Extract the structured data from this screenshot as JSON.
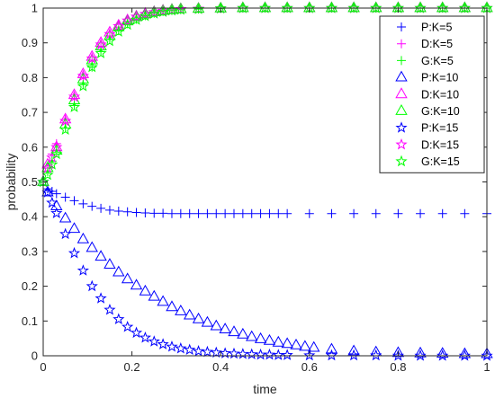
{
  "chart_data": {
    "type": "scatter",
    "title": "",
    "xlabel": "time",
    "ylabel": "probability",
    "xlim": [
      0,
      1
    ],
    "ylim": [
      0,
      1
    ],
    "xticks": [
      0,
      0.2,
      0.4,
      0.6,
      0.8,
      1
    ],
    "xtick_labels": [
      "0",
      "0.2",
      "0.4",
      "0.6",
      "0.8",
      "1"
    ],
    "yticks": [
      0,
      0.1,
      0.2,
      0.3,
      0.4,
      0.5,
      0.6,
      0.7,
      0.8,
      0.9,
      1
    ],
    "ytick_labels": [
      "0",
      "0.1",
      "0.2",
      "0.3",
      "0.4",
      "0.5",
      "0.6",
      "0.7",
      "0.8",
      "0.9",
      "1"
    ],
    "grid": false,
    "legend_position": "top-right",
    "series": [
      {
        "name": "P:K=5",
        "marker": "plus",
        "color": "#0000ff",
        "x": [
          0,
          0.01,
          0.02,
          0.03,
          0.05,
          0.07,
          0.09,
          0.11,
          0.13,
          0.15,
          0.17,
          0.19,
          0.21,
          0.23,
          0.25,
          0.27,
          0.29,
          0.31,
          0.33,
          0.35,
          0.37,
          0.39,
          0.41,
          0.43,
          0.45,
          0.47,
          0.49,
          0.51,
          0.53,
          0.55,
          0.6,
          0.65,
          0.7,
          0.75,
          0.8,
          0.85,
          0.9,
          0.95,
          1
        ],
        "y": [
          0.5,
          0.48,
          0.473,
          0.466,
          0.456,
          0.446,
          0.437,
          0.43,
          0.424,
          0.419,
          0.416,
          0.414,
          0.412,
          0.411,
          0.41,
          0.41,
          0.409,
          0.409,
          0.409,
          0.409,
          0.409,
          0.409,
          0.409,
          0.409,
          0.409,
          0.409,
          0.409,
          0.409,
          0.409,
          0.409,
          0.409,
          0.409,
          0.409,
          0.409,
          0.409,
          0.409,
          0.409,
          0.409,
          0.409
        ]
      },
      {
        "name": "D:K=5",
        "marker": "plus",
        "color": "#ff00ff",
        "x": [
          0,
          0.01,
          0.02,
          0.03,
          0.05,
          0.07,
          0.09,
          0.11,
          0.13,
          0.15,
          0.17,
          0.19,
          0.21,
          0.23,
          0.25,
          0.27,
          0.29,
          0.31,
          0.35,
          0.4,
          0.45,
          0.5,
          0.55,
          0.6,
          0.65,
          0.7,
          0.75,
          0.8,
          0.85,
          0.9,
          0.95,
          1
        ],
        "y": [
          0.5,
          0.54,
          0.58,
          0.61,
          0.68,
          0.74,
          0.8,
          0.85,
          0.89,
          0.92,
          0.945,
          0.962,
          0.974,
          0.982,
          0.988,
          0.992,
          0.995,
          0.997,
          0.998,
          0.999,
          1,
          1,
          1,
          1,
          1,
          1,
          1,
          1,
          1,
          1,
          1,
          1
        ]
      },
      {
        "name": "G:K=5",
        "marker": "plus",
        "color": "#00ff00",
        "x": [
          0,
          0.01,
          0.02,
          0.03,
          0.05,
          0.07,
          0.09,
          0.11,
          0.13,
          0.15,
          0.17,
          0.19,
          0.21,
          0.23,
          0.25,
          0.27,
          0.29,
          0.31,
          0.35,
          0.4,
          0.45,
          0.5,
          0.55,
          0.6,
          0.65,
          0.7,
          0.75,
          0.8,
          0.85,
          0.9,
          0.95,
          1
        ],
        "y": [
          0.5,
          0.53,
          0.56,
          0.59,
          0.655,
          0.72,
          0.78,
          0.83,
          0.875,
          0.91,
          0.935,
          0.955,
          0.968,
          0.978,
          0.985,
          0.99,
          0.993,
          0.995,
          0.997,
          0.999,
          1,
          1,
          1,
          1,
          1,
          1,
          1,
          1,
          1,
          1,
          1,
          1
        ]
      },
      {
        "name": "P:K=10",
        "marker": "triangle",
        "color": "#0000ff",
        "x": [
          0,
          0.01,
          0.03,
          0.05,
          0.07,
          0.09,
          0.11,
          0.13,
          0.15,
          0.17,
          0.19,
          0.21,
          0.23,
          0.25,
          0.27,
          0.29,
          0.31,
          0.33,
          0.35,
          0.37,
          0.39,
          0.41,
          0.43,
          0.45,
          0.47,
          0.49,
          0.51,
          0.53,
          0.55,
          0.57,
          0.59,
          0.61,
          0.65,
          0.7,
          0.75,
          0.8,
          0.85,
          0.9,
          0.95,
          1
        ],
        "y": [
          0.5,
          0.47,
          0.43,
          0.395,
          0.365,
          0.335,
          0.31,
          0.285,
          0.262,
          0.24,
          0.22,
          0.202,
          0.185,
          0.17,
          0.155,
          0.14,
          0.128,
          0.116,
          0.105,
          0.095,
          0.085,
          0.076,
          0.068,
          0.061,
          0.054,
          0.048,
          0.043,
          0.038,
          0.034,
          0.03,
          0.026,
          0.023,
          0.018,
          0.013,
          0.01,
          0.008,
          0.007,
          0.006,
          0.005,
          0.005
        ]
      },
      {
        "name": "D:K=10",
        "marker": "triangle",
        "color": "#ff00ff",
        "x": [
          0,
          0.01,
          0.03,
          0.05,
          0.07,
          0.09,
          0.11,
          0.13,
          0.15,
          0.17,
          0.19,
          0.21,
          0.23,
          0.25,
          0.27,
          0.29,
          0.31,
          0.35,
          0.4,
          0.45,
          0.5,
          0.55,
          0.6,
          0.65,
          0.7,
          0.75,
          0.8,
          0.85,
          0.9,
          0.95,
          1
        ],
        "y": [
          0.5,
          0.55,
          0.6,
          0.68,
          0.75,
          0.81,
          0.86,
          0.9,
          0.93,
          0.95,
          0.965,
          0.976,
          0.984,
          0.989,
          0.993,
          0.995,
          0.997,
          0.998,
          0.999,
          1,
          1,
          1,
          1,
          1,
          1,
          1,
          1,
          1,
          1,
          1,
          1
        ]
      },
      {
        "name": "G:K=10",
        "marker": "triangle",
        "color": "#00ff00",
        "x": [
          0,
          0.01,
          0.03,
          0.05,
          0.07,
          0.09,
          0.11,
          0.13,
          0.15,
          0.17,
          0.19,
          0.21,
          0.23,
          0.25,
          0.27,
          0.29,
          0.31,
          0.35,
          0.4,
          0.45,
          0.5,
          0.55,
          0.6,
          0.65,
          0.7,
          0.75,
          0.8,
          0.85,
          0.9,
          0.95,
          1
        ],
        "y": [
          0.5,
          0.54,
          0.59,
          0.665,
          0.735,
          0.795,
          0.85,
          0.89,
          0.92,
          0.945,
          0.962,
          0.974,
          0.982,
          0.988,
          0.992,
          0.995,
          0.997,
          0.998,
          0.999,
          1,
          1,
          1,
          1,
          1,
          1,
          1,
          1,
          1,
          1,
          1,
          1
        ]
      },
      {
        "name": "P:K=15",
        "marker": "star",
        "color": "#0000ff",
        "x": [
          0,
          0.01,
          0.02,
          0.03,
          0.05,
          0.07,
          0.09,
          0.11,
          0.13,
          0.15,
          0.17,
          0.19,
          0.21,
          0.23,
          0.25,
          0.27,
          0.29,
          0.31,
          0.33,
          0.35,
          0.37,
          0.39,
          0.41,
          0.43,
          0.45,
          0.47,
          0.49,
          0.51,
          0.53,
          0.55,
          0.6,
          0.65,
          0.7,
          0.75,
          0.8,
          0.85,
          0.9,
          0.95,
          1
        ],
        "y": [
          0.5,
          0.47,
          0.44,
          0.41,
          0.35,
          0.295,
          0.245,
          0.2,
          0.165,
          0.132,
          0.105,
          0.083,
          0.066,
          0.052,
          0.041,
          0.033,
          0.026,
          0.021,
          0.017,
          0.013,
          0.011,
          0.009,
          0.007,
          0.006,
          0.005,
          0.004,
          0.003,
          0.003,
          0.002,
          0.002,
          0.001,
          0.001,
          0.001,
          0.001,
          0,
          0,
          0,
          0,
          0
        ]
      },
      {
        "name": "D:K=15",
        "marker": "star",
        "color": "#ff00ff",
        "x": [
          0,
          0.01,
          0.02,
          0.03,
          0.05,
          0.07,
          0.09,
          0.11,
          0.13,
          0.15,
          0.17,
          0.19,
          0.21,
          0.23,
          0.25,
          0.27,
          0.29,
          0.31,
          0.35,
          0.4,
          0.45,
          0.5,
          0.55,
          0.6,
          0.65,
          0.7,
          0.75,
          0.8,
          0.85,
          0.9,
          0.95,
          1
        ],
        "y": [
          0.5,
          0.54,
          0.57,
          0.6,
          0.675,
          0.745,
          0.805,
          0.855,
          0.895,
          0.925,
          0.948,
          0.964,
          0.975,
          0.983,
          0.988,
          0.992,
          0.995,
          0.997,
          0.998,
          0.999,
          1,
          1,
          1,
          1,
          1,
          1,
          1,
          1,
          1,
          1,
          1,
          1
        ]
      },
      {
        "name": "G:K=15",
        "marker": "star",
        "color": "#00ff00",
        "x": [
          0,
          0.01,
          0.02,
          0.03,
          0.05,
          0.07,
          0.09,
          0.11,
          0.13,
          0.15,
          0.17,
          0.19,
          0.21,
          0.23,
          0.25,
          0.27,
          0.29,
          0.31,
          0.35,
          0.4,
          0.45,
          0.5,
          0.55,
          0.6,
          0.65,
          0.7,
          0.75,
          0.8,
          0.85,
          0.9,
          0.95,
          1
        ],
        "y": [
          0.5,
          0.52,
          0.55,
          0.58,
          0.65,
          0.715,
          0.775,
          0.83,
          0.87,
          0.905,
          0.932,
          0.952,
          0.966,
          0.977,
          0.984,
          0.989,
          0.993,
          0.995,
          0.997,
          0.999,
          1,
          1,
          1,
          1,
          1,
          1,
          1,
          1,
          1,
          1,
          1,
          1
        ]
      }
    ]
  }
}
